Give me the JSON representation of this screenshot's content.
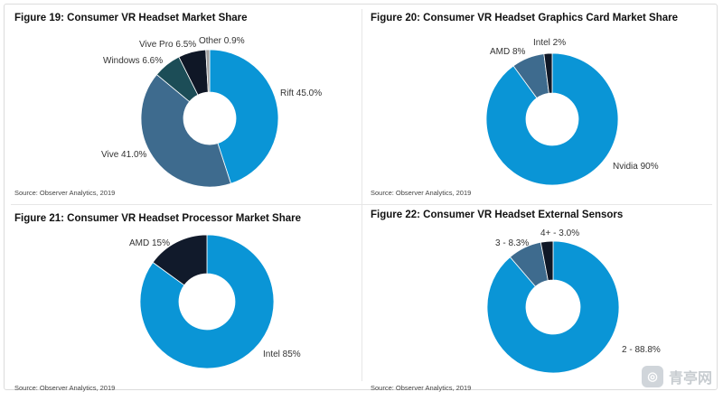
{
  "chart_data": [
    {
      "type": "pie",
      "title": "Figure 19: Consumer VR Headset Market Share",
      "source": "Source: Observer Analytics, 2019",
      "slices": [
        {
          "label": "Rift 45.0%",
          "value": 45.0,
          "color": "#0a95d6"
        },
        {
          "label": "Vive 41.0%",
          "value": 41.0,
          "color": "#3e6b8e"
        },
        {
          "label": "Windows 6.6%",
          "value": 6.6,
          "color": "#1c4d57"
        },
        {
          "label": "Vive Pro 6.5%",
          "value": 6.5,
          "color": "#0f1726"
        },
        {
          "label": "Other 0.9%",
          "value": 0.9,
          "color": "#9e9e9e"
        }
      ]
    },
    {
      "type": "pie",
      "title": "Figure 20: Consumer VR Headset Graphics Card Market Share",
      "source": "Source: Observer Analytics, 2019",
      "slices": [
        {
          "label": "Nvidia 90%",
          "value": 90,
          "color": "#0a95d6"
        },
        {
          "label": "AMD 8%",
          "value": 8,
          "color": "#3e6b8e"
        },
        {
          "label": "Intel 2%",
          "value": 2,
          "color": "#0f1726"
        }
      ]
    },
    {
      "type": "pie",
      "title": "Figure 21: Consumer VR Headset Processor Market Share",
      "source": "Source: Observer Analytics, 2019",
      "slices": [
        {
          "label": "Intel 85%",
          "value": 85,
          "color": "#0a95d6"
        },
        {
          "label": "AMD 15%",
          "value": 15,
          "color": "#111a2b"
        }
      ]
    },
    {
      "type": "pie",
      "title": "Figure 22: Consumer VR Headset External Sensors",
      "source": "Source: Observer Analytics, 2019",
      "slices": [
        {
          "label": "2 - 88.8%",
          "value": 88.8,
          "color": "#0a95d6"
        },
        {
          "label": "3 - 8.3%",
          "value": 8.3,
          "color": "#3e6b8e"
        },
        {
          "label": "4+ - 3.0%",
          "value": 3.0,
          "color": "#0f1726"
        }
      ]
    }
  ],
  "watermark": {
    "icon": "vr-logo-icon",
    "text": "青亭网"
  }
}
